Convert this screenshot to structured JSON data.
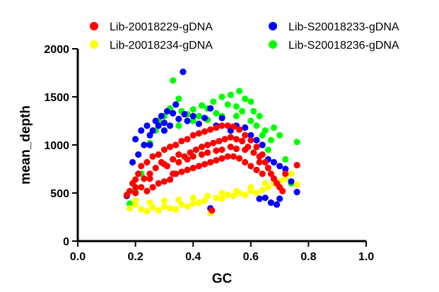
{
  "chart_data": {
    "type": "scatter",
    "xlabel": "GC",
    "ylabel": "mean_depth",
    "xlim": [
      0.0,
      1.0
    ],
    "ylim": [
      0,
      2000
    ],
    "xticks": [
      "0.0",
      "0.2",
      "0.4",
      "0.6",
      "0.8",
      "1.0"
    ],
    "yticks": [
      "0",
      "500",
      "1000",
      "1500",
      "2000"
    ],
    "grid": false,
    "legend_position": "top",
    "series": [
      {
        "name": "Lib-S20018236-gDNA",
        "color": "#00ff00",
        "points": [
          [
            0.18,
            390
          ],
          [
            0.2,
            520
          ],
          [
            0.22,
            700
          ],
          [
            0.25,
            1020
          ],
          [
            0.27,
            1150
          ],
          [
            0.28,
            1250
          ],
          [
            0.3,
            1300
          ],
          [
            0.32,
            1380
          ],
          [
            0.33,
            1670
          ],
          [
            0.35,
            1480
          ],
          [
            0.36,
            1350
          ],
          [
            0.38,
            1320
          ],
          [
            0.4,
            1370
          ],
          [
            0.42,
            1300
          ],
          [
            0.43,
            1410
          ],
          [
            0.45,
            1380
          ],
          [
            0.47,
            1450
          ],
          [
            0.48,
            1330
          ],
          [
            0.5,
            1500
          ],
          [
            0.52,
            1420
          ],
          [
            0.53,
            1520
          ],
          [
            0.55,
            1400
          ],
          [
            0.56,
            1560
          ],
          [
            0.58,
            1480
          ],
          [
            0.6,
            1450
          ],
          [
            0.61,
            1350
          ],
          [
            0.62,
            1200
          ],
          [
            0.63,
            1300
          ],
          [
            0.64,
            1100
          ],
          [
            0.65,
            1150
          ],
          [
            0.66,
            950
          ],
          [
            0.67,
            1050
          ],
          [
            0.68,
            1180
          ],
          [
            0.7,
            1100
          ],
          [
            0.72,
            850
          ],
          [
            0.74,
            600
          ],
          [
            0.76,
            1030
          ],
          [
            0.4,
            1250
          ],
          [
            0.5,
            1300
          ],
          [
            0.57,
            1350
          ],
          [
            0.35,
            1200
          ],
          [
            0.45,
            1260
          ],
          [
            0.6,
            1250
          ],
          [
            0.55,
            1300
          ],
          [
            0.3,
            1150
          ]
        ]
      },
      {
        "name": "Lib-S20018233-gDNA",
        "color": "#0000ff",
        "points": [
          [
            0.17,
            470
          ],
          [
            0.19,
            820
          ],
          [
            0.2,
            1060
          ],
          [
            0.21,
            900
          ],
          [
            0.22,
            1150
          ],
          [
            0.23,
            1000
          ],
          [
            0.24,
            1200
          ],
          [
            0.25,
            1100
          ],
          [
            0.26,
            1150
          ],
          [
            0.27,
            1250
          ],
          [
            0.28,
            1200
          ],
          [
            0.29,
            1300
          ],
          [
            0.3,
            1230
          ],
          [
            0.31,
            1350
          ],
          [
            0.32,
            1200
          ],
          [
            0.33,
            1330
          ],
          [
            0.34,
            1420
          ],
          [
            0.35,
            1270
          ],
          [
            0.365,
            1760
          ],
          [
            0.37,
            1320
          ],
          [
            0.38,
            1250
          ],
          [
            0.4,
            1300
          ],
          [
            0.42,
            1220
          ],
          [
            0.44,
            1280
          ],
          [
            0.46,
            1380
          ],
          [
            0.48,
            1200
          ],
          [
            0.5,
            1280
          ],
          [
            0.53,
            1150
          ],
          [
            0.55,
            1200
          ],
          [
            0.58,
            1180
          ],
          [
            0.6,
            1100
          ],
          [
            0.62,
            1050
          ],
          [
            0.64,
            1000
          ],
          [
            0.66,
            850
          ],
          [
            0.68,
            820
          ],
          [
            0.7,
            780
          ],
          [
            0.72,
            750
          ],
          [
            0.74,
            620
          ],
          [
            0.76,
            510
          ],
          [
            0.63,
            440
          ],
          [
            0.65,
            450
          ],
          [
            0.67,
            400
          ],
          [
            0.69,
            380
          ],
          [
            0.7,
            440
          ],
          [
            0.46,
            340
          ],
          [
            0.25,
            1000
          ],
          [
            0.3,
            1150
          ]
        ]
      },
      {
        "name": "Lib-20018234-gDNA",
        "color": "#ffff00",
        "points": [
          [
            0.18,
            340
          ],
          [
            0.2,
            380
          ],
          [
            0.22,
            330
          ],
          [
            0.24,
            310
          ],
          [
            0.26,
            350
          ],
          [
            0.28,
            320
          ],
          [
            0.3,
            360
          ],
          [
            0.32,
            340
          ],
          [
            0.34,
            330
          ],
          [
            0.36,
            380
          ],
          [
            0.38,
            360
          ],
          [
            0.4,
            390
          ],
          [
            0.42,
            400
          ],
          [
            0.44,
            420
          ],
          [
            0.46,
            290
          ],
          [
            0.48,
            450
          ],
          [
            0.5,
            440
          ],
          [
            0.52,
            480
          ],
          [
            0.54,
            470
          ],
          [
            0.56,
            500
          ],
          [
            0.58,
            480
          ],
          [
            0.6,
            520
          ],
          [
            0.62,
            500
          ],
          [
            0.64,
            530
          ],
          [
            0.66,
            560
          ],
          [
            0.68,
            600
          ],
          [
            0.7,
            620
          ],
          [
            0.72,
            650
          ],
          [
            0.74,
            700
          ],
          [
            0.76,
            590
          ],
          [
            0.3,
            420
          ],
          [
            0.35,
            430
          ],
          [
            0.4,
            450
          ],
          [
            0.45,
            470
          ],
          [
            0.5,
            500
          ],
          [
            0.55,
            520
          ],
          [
            0.6,
            560
          ],
          [
            0.65,
            600
          ],
          [
            0.25,
            400
          ],
          [
            0.2,
            420
          ]
        ]
      },
      {
        "name": "Lib-20018229-gDNA",
        "color": "#ff0000",
        "points": [
          [
            0.17,
            480
          ],
          [
            0.18,
            520
          ],
          [
            0.19,
            600
          ],
          [
            0.2,
            640
          ],
          [
            0.2,
            500
          ],
          [
            0.21,
            700
          ],
          [
            0.22,
            560
          ],
          [
            0.22,
            780
          ],
          [
            0.23,
            650
          ],
          [
            0.24,
            820
          ],
          [
            0.24,
            520
          ],
          [
            0.25,
            700
          ],
          [
            0.26,
            880
          ],
          [
            0.26,
            560
          ],
          [
            0.27,
            760
          ],
          [
            0.28,
            900
          ],
          [
            0.28,
            600
          ],
          [
            0.29,
            820
          ],
          [
            0.3,
            950
          ],
          [
            0.3,
            620
          ],
          [
            0.31,
            780
          ],
          [
            0.32,
            980
          ],
          [
            0.32,
            640
          ],
          [
            0.33,
            850
          ],
          [
            0.34,
            1000
          ],
          [
            0.34,
            700
          ],
          [
            0.35,
            900
          ],
          [
            0.36,
            1040
          ],
          [
            0.36,
            720
          ],
          [
            0.37,
            880
          ],
          [
            0.38,
            1060
          ],
          [
            0.38,
            740
          ],
          [
            0.39,
            920
          ],
          [
            0.4,
            1100
          ],
          [
            0.4,
            760
          ],
          [
            0.41,
            950
          ],
          [
            0.42,
            1120
          ],
          [
            0.42,
            780
          ],
          [
            0.43,
            980
          ],
          [
            0.44,
            1140
          ],
          [
            0.44,
            800
          ],
          [
            0.45,
            1000
          ],
          [
            0.46,
            1160
          ],
          [
            0.46,
            820
          ],
          [
            0.465,
            320
          ],
          [
            0.47,
            1020
          ],
          [
            0.48,
            1180
          ],
          [
            0.48,
            840
          ],
          [
            0.49,
            1040
          ],
          [
            0.5,
            1200
          ],
          [
            0.5,
            860
          ],
          [
            0.51,
            1060
          ],
          [
            0.52,
            1200
          ],
          [
            0.52,
            880
          ],
          [
            0.53,
            1080
          ],
          [
            0.54,
            1190
          ],
          [
            0.54,
            880
          ],
          [
            0.55,
            1060
          ],
          [
            0.56,
            1160
          ],
          [
            0.56,
            860
          ],
          [
            0.57,
            1040
          ],
          [
            0.58,
            1100
          ],
          [
            0.58,
            820
          ],
          [
            0.59,
            980
          ],
          [
            0.6,
            1050
          ],
          [
            0.6,
            780
          ],
          [
            0.61,
            920
          ],
          [
            0.62,
            980
          ],
          [
            0.62,
            740
          ],
          [
            0.63,
            880
          ],
          [
            0.64,
            900
          ],
          [
            0.64,
            700
          ],
          [
            0.65,
            820
          ],
          [
            0.66,
            760
          ],
          [
            0.67,
            700
          ],
          [
            0.68,
            650
          ],
          [
            0.69,
            600
          ],
          [
            0.7,
            560
          ],
          [
            0.71,
            520
          ],
          [
            0.72,
            700
          ],
          [
            0.76,
            790
          ],
          [
            0.3,
            800
          ],
          [
            0.35,
            820
          ],
          [
            0.4,
            880
          ],
          [
            0.45,
            920
          ],
          [
            0.5,
            950
          ],
          [
            0.55,
            960
          ],
          [
            0.25,
            650
          ],
          [
            0.2,
            560
          ],
          [
            0.33,
            700
          ],
          [
            0.38,
            850
          ],
          [
            0.43,
            900
          ],
          [
            0.48,
            940
          ],
          [
            0.53,
            980
          ],
          [
            0.58,
            950
          ],
          [
            0.63,
            820
          ]
        ]
      }
    ]
  }
}
